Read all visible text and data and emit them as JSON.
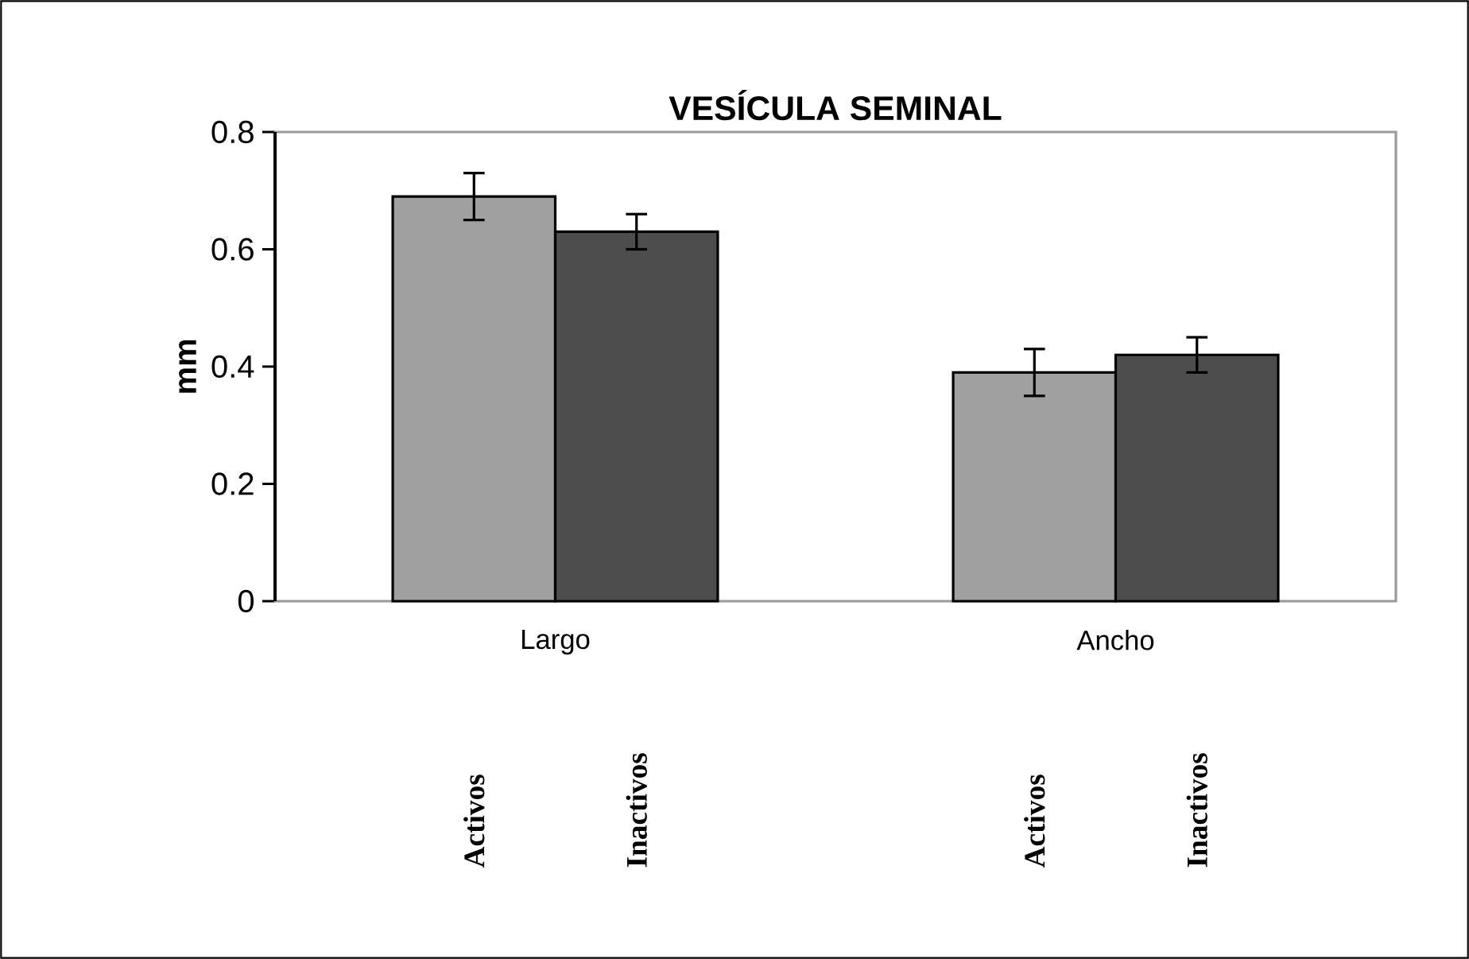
{
  "chart_data": {
    "type": "bar",
    "title": "VESÍCULA SEMINAL",
    "ylabel": "mm",
    "categories": [
      "Largo",
      "Ancho"
    ],
    "series": [
      {
        "name": "Activos",
        "color": "#a0a0a0",
        "values": [
          0.69,
          0.39
        ],
        "errors": [
          0.04,
          0.04
        ]
      },
      {
        "name": "Inactivos",
        "color": "#4d4d4d",
        "values": [
          0.63,
          0.42
        ],
        "errors": [
          0.03,
          0.03
        ]
      }
    ],
    "ylim": [
      0,
      0.8
    ],
    "yticks": [
      0,
      0.2,
      0.4,
      0.6,
      0.8
    ]
  }
}
